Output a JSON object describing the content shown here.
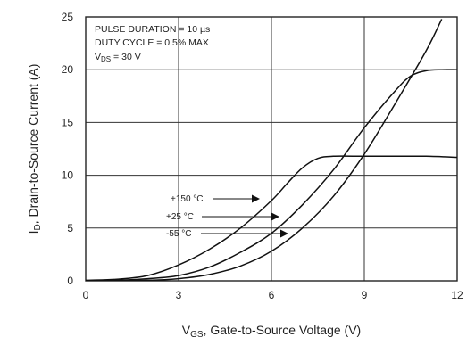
{
  "chart_data": {
    "type": "line",
    "xlabel": {
      "main": "V",
      "sub": "GS",
      "rest": ", Gate-to-Source Voltage (V)"
    },
    "ylabel": {
      "main": "I",
      "sub": "D",
      "rest": ", Drain-to-Source Current (A)"
    },
    "xlim": [
      0,
      12
    ],
    "ylim": [
      0,
      25
    ],
    "x_ticks": [
      0,
      3,
      6,
      9,
      12
    ],
    "y_ticks": [
      0,
      5,
      10,
      15,
      20,
      25
    ],
    "grid": true,
    "annotations": [
      {
        "text": "PULSE DURATION = 10 µs"
      },
      {
        "text": "DUTY CYCLE = 0.5% MAX"
      },
      {
        "main": "V",
        "sub": "DS",
        "rest": " = 30 V"
      }
    ],
    "series": [
      {
        "name": "+150 °C",
        "x": [
          0,
          1,
          2,
          3,
          4,
          5,
          6,
          6.5,
          7,
          7.5,
          8,
          9,
          10,
          11,
          12
        ],
        "y": [
          0.05,
          0.15,
          0.5,
          1.5,
          3.0,
          5.0,
          7.6,
          9.2,
          10.7,
          11.6,
          11.8,
          11.8,
          11.8,
          11.8,
          11.7
        ]
      },
      {
        "name": "+25 °C",
        "x": [
          0,
          1,
          2,
          3,
          4,
          5,
          6,
          7,
          8,
          9,
          10,
          10.5,
          11,
          11.5,
          12
        ],
        "y": [
          0,
          0.05,
          0.2,
          0.5,
          1.3,
          2.7,
          4.5,
          7.2,
          10.5,
          14.5,
          18.0,
          19.4,
          19.9,
          20.0,
          20.0
        ]
      },
      {
        "name": "-55 °C",
        "x": [
          0,
          2,
          3,
          4,
          5,
          6,
          7,
          8,
          9,
          10,
          11,
          11.5
        ],
        "y": [
          0,
          0.05,
          0.2,
          0.6,
          1.4,
          2.8,
          5.0,
          8.0,
          12.0,
          16.8,
          21.8,
          24.8
        ]
      }
    ]
  }
}
